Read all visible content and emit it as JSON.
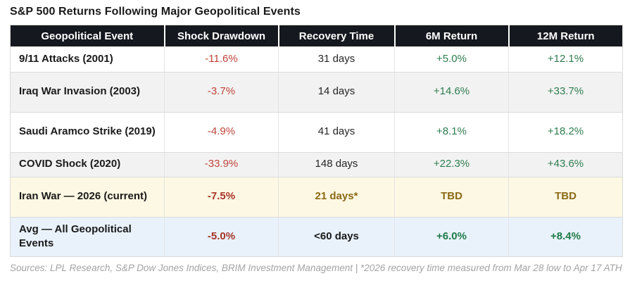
{
  "page": {
    "title": "S&P 500 Returns Following Major Geopolitical Events"
  },
  "chart_data": {
    "type": "table",
    "title": "S&P 500 Returns Following Major Geopolitical Events",
    "columns": [
      "Geopolitical Event",
      "Shock Drawdown",
      "Recovery Time",
      "6M Return",
      "12M Return"
    ],
    "rows": [
      {
        "event": "9/11 Attacks (2001)",
        "drawdown": "-11.6%",
        "recovery": "31 days",
        "ret_6m": "+5.0%",
        "ret_12m": "+12.1%"
      },
      {
        "event": "Iraq War Invasion (2003)",
        "drawdown": "-3.7%",
        "recovery": "14 days",
        "ret_6m": "+14.6%",
        "ret_12m": "+33.7%"
      },
      {
        "event": "Saudi Aramco Strike (2019)",
        "drawdown": "-4.9%",
        "recovery": "41 days",
        "ret_6m": "+8.1%",
        "ret_12m": "+18.2%"
      },
      {
        "event": "COVID Shock (2020)",
        "drawdown": "-33.9%",
        "recovery": "148 days",
        "ret_6m": "+22.3%",
        "ret_12m": "+43.6%"
      },
      {
        "event": "Iran War — 2026 (current)",
        "drawdown": "-7.5%",
        "recovery": "21 days*",
        "ret_6m": "TBD",
        "ret_12m": "TBD"
      },
      {
        "event": "Avg — All Geopolitical Events",
        "drawdown": "-5.0%",
        "recovery": "<60 days",
        "ret_6m": "+6.0%",
        "ret_12m": "+8.4%"
      }
    ],
    "drawdown_numeric_pct": [
      -11.6,
      -3.7,
      -4.9,
      -33.9,
      -7.5,
      -5.0
    ],
    "recovery_days_numeric": [
      31,
      14,
      41,
      148,
      21,
      60
    ],
    "return_6m_numeric_pct": [
      5.0,
      14.6,
      8.1,
      22.3,
      null,
      6.0
    ],
    "return_12m_numeric_pct": [
      12.1,
      33.7,
      18.2,
      43.6,
      null,
      8.4
    ]
  },
  "footer": {
    "text": "Sources: LPL Research, S&P Dow Jones Indices, BRIM Investment Management | *2026 recovery time measured from Mar 28 low to Apr 17 ATH"
  },
  "colors": {
    "header_bg": "#15181e",
    "header_text": "#ffffff",
    "negative_red": "#c0443a",
    "negative_red_strong": "#a63428",
    "positive_green": "#2e7d4f",
    "positive_green_strong": "#1f7a48",
    "pending_gold": "#8a6914",
    "highlight_yellow_bg": "#fcf8e3",
    "highlight_blue_bg": "#e9f2fb",
    "alt_row_bg": "#f2f2f2"
  }
}
